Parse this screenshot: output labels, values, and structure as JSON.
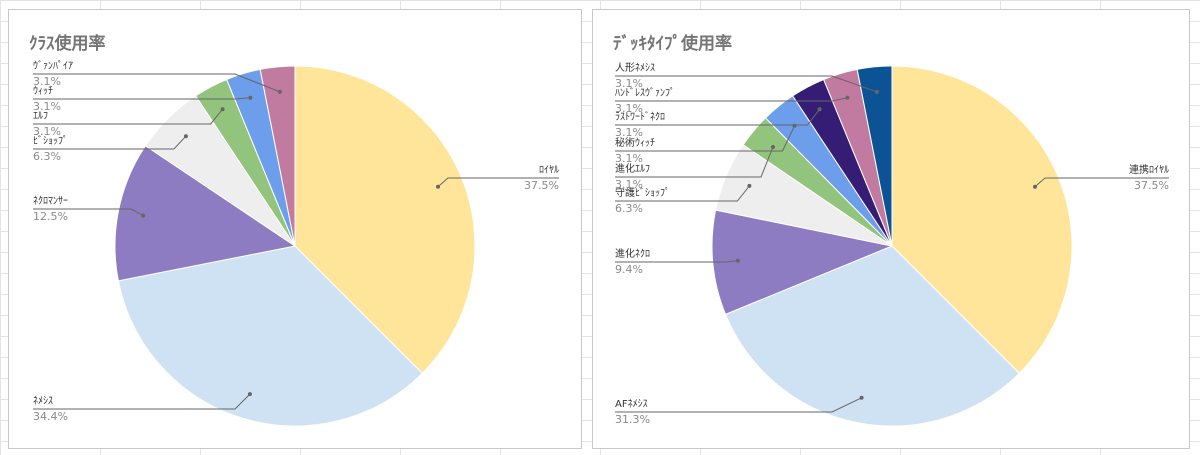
{
  "chart_data": [
    {
      "type": "pie",
      "title": "ｸﾗｽ使用率",
      "start": "top, clockwise",
      "slices": [
        {
          "label": "ﾛｲﾔﾙ",
          "percent": "37.5%",
          "value": 37.5,
          "color": "#ffe599"
        },
        {
          "label": "ﾈﾒｼｽ",
          "percent": "34.4%",
          "value": 34.4,
          "color": "#cfe2f3"
        },
        {
          "label": "ﾈｸﾛﾏﾝｻｰ",
          "percent": "12.5%",
          "value": 12.5,
          "color": "#8e7cc3"
        },
        {
          "label": "ﾋﾞｼｮｯﾌﾟ",
          "percent": "6.3%",
          "value": 6.3,
          "color": "#eeeeee"
        },
        {
          "label": "ｴﾙﾌ",
          "percent": "3.1%",
          "value": 3.1,
          "color": "#93c47d"
        },
        {
          "label": "ｳｨｯﾁ",
          "percent": "3.1%",
          "value": 3.1,
          "color": "#6d9eeb"
        },
        {
          "label": "ｳﾞｧﾝﾊﾟｲｱ",
          "percent": "3.1%",
          "value": 3.1,
          "color": "#c27ba0"
        }
      ]
    },
    {
      "type": "pie",
      "title": "ﾃﾞｯｷﾀｲﾌﾟ使用率",
      "start": "top, clockwise",
      "slices": [
        {
          "label": "連携ﾛｲﾔﾙ",
          "percent": "37.5%",
          "value": 37.5,
          "color": "#ffe599"
        },
        {
          "label": "AFﾈﾒｼｽ",
          "percent": "31.3%",
          "value": 31.3,
          "color": "#cfe2f3"
        },
        {
          "label": "進化ﾈｸﾛ",
          "percent": "9.4%",
          "value": 9.4,
          "color": "#8e7cc3"
        },
        {
          "label": "守護ﾋﾞｼｮｯﾌﾟ",
          "percent": "6.3%",
          "value": 6.3,
          "color": "#eeeeee"
        },
        {
          "label": "進化ｴﾙﾌ",
          "percent": "3.1%",
          "value": 3.1,
          "color": "#93c47d"
        },
        {
          "label": "秘術ｳｨｯﾁ",
          "percent": "3.1%",
          "value": 3.1,
          "color": "#6d9eeb"
        },
        {
          "label": "ﾗｽﾄﾜｰﾄﾞﾈｸﾛ",
          "percent": "3.1%",
          "value": 3.1,
          "color": "#351c75"
        },
        {
          "label": "ﾊﾝﾄﾞﾚｽｳﾞｧﾝﾌﾟ",
          "percent": "3.1%",
          "value": 3.1,
          "color": "#c27ba0"
        },
        {
          "label": "人形ﾈﾒｼｽ",
          "percent": "3.1%",
          "value": 3.1,
          "color": "#0b5394"
        }
      ]
    }
  ]
}
